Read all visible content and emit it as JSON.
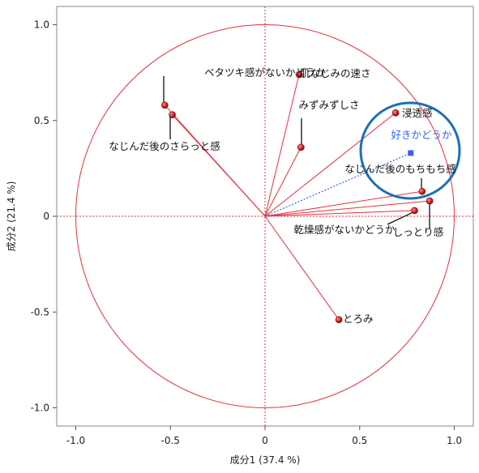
{
  "chart_data": {
    "type": "scatter",
    "title": "",
    "xlabel": "成分1 (37.4 %)",
    "ylabel": "成分2 (21.4 %)",
    "xlim": [
      -1.1,
      1.1
    ],
    "ylim": [
      -1.1,
      1.1
    ],
    "x_ticks": [
      -1.0,
      -0.5,
      0,
      0.5,
      1.0
    ],
    "y_ticks": [
      -1.0,
      -0.5,
      0,
      0.5,
      1.0
    ],
    "x_tick_labels": [
      "-1.0",
      "-0.5",
      "0",
      "0.5",
      "1.0"
    ],
    "y_tick_labels": [
      "-1.0",
      "-0.5",
      "0",
      "0.5",
      "1.0"
    ],
    "unit_circle_radius": 1.0,
    "reference_lines": [
      0,
      0
    ],
    "colors": {
      "vector": "#e8303c",
      "marker": "#d81e28",
      "circle": "#e8303c",
      "supplementary": "#3366ee",
      "highlight_ring": "#1a6fb8",
      "leader": "#111111"
    },
    "points": [
      {
        "label": "ベタツキ感がないかどうか",
        "x": -0.53,
        "y": 0.58
      },
      {
        "label": "なじんだ後のさらっと感",
        "x": -0.49,
        "y": 0.53
      },
      {
        "label": "肌なじみの速さ",
        "x": 0.18,
        "y": 0.74
      },
      {
        "label": "みずみずしさ",
        "x": 0.19,
        "y": 0.36
      },
      {
        "label": "浸透感",
        "x": 0.69,
        "y": 0.54
      },
      {
        "label": "なじんだ後のもちもち感",
        "x": 0.83,
        "y": 0.13
      },
      {
        "label": "しっとり感",
        "x": 0.87,
        "y": 0.08
      },
      {
        "label": "乾燥感がないかどうか",
        "x": 0.79,
        "y": 0.03
      },
      {
        "label": "とろみ",
        "x": 0.39,
        "y": -0.54
      }
    ],
    "supplementary": [
      {
        "label": "好きかどうか",
        "x": 0.77,
        "y": 0.33
      }
    ]
  }
}
